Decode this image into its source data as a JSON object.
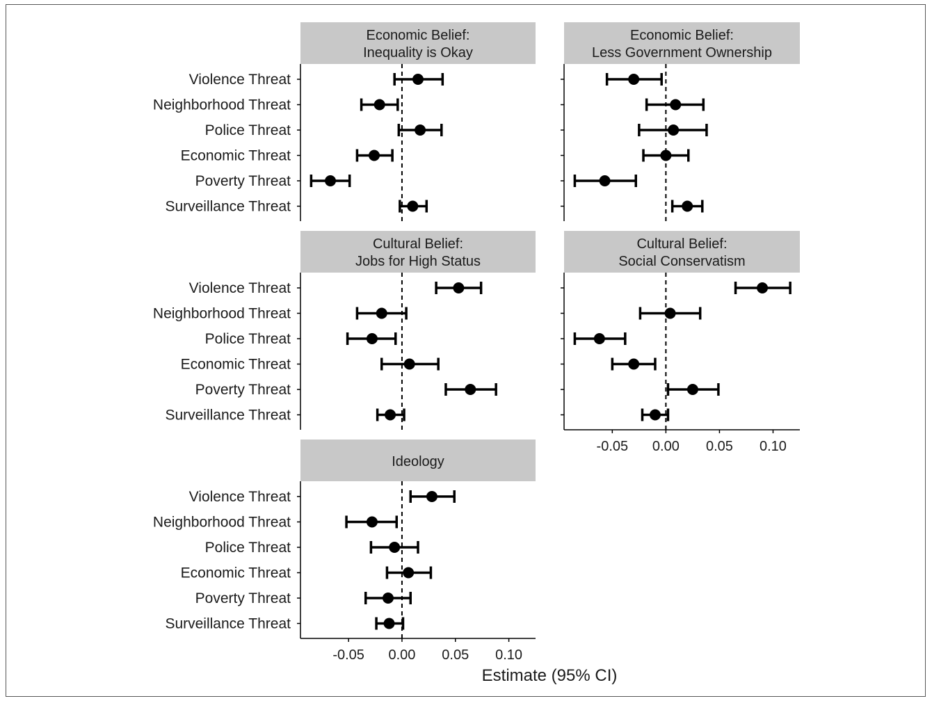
{
  "chart_data": {
    "type": "scatter",
    "subtype": "coefficient-plot-with-error-bars",
    "xlabel": "Estimate (95% CI)",
    "xlim": [
      -0.095,
      0.125
    ],
    "xticks": [
      -0.05,
      0.0,
      0.05,
      0.1
    ],
    "xtick_labels": [
      "-0.05",
      "0.00",
      "0.05",
      "0.10"
    ],
    "reference_line": 0,
    "categories": [
      "Violence Threat",
      "Neighborhood Threat",
      "Police Threat",
      "Economic Threat",
      "Poverty Threat",
      "Surveillance Threat"
    ],
    "colors": {
      "point": "#000000",
      "strip": "#c8c8c8",
      "axis": "#000000"
    },
    "panels": [
      {
        "title_lines": [
          "Economic Belief:",
          "Inequality is Okay"
        ],
        "estimates": [
          0.015,
          -0.021,
          0.017,
          -0.026,
          -0.067,
          0.01
        ],
        "ci_low": [
          -0.007,
          -0.038,
          -0.003,
          -0.042,
          -0.085,
          -0.002
        ],
        "ci_high": [
          0.038,
          -0.004,
          0.037,
          -0.009,
          -0.049,
          0.023
        ]
      },
      {
        "title_lines": [
          "Economic Belief:",
          "Less Government Ownership"
        ],
        "estimates": [
          -0.03,
          0.009,
          0.007,
          0.0,
          -0.057,
          0.02
        ],
        "ci_low": [
          -0.055,
          -0.018,
          -0.025,
          -0.021,
          -0.085,
          0.006
        ],
        "ci_high": [
          -0.004,
          0.035,
          0.038,
          0.021,
          -0.028,
          0.034
        ]
      },
      {
        "title_lines": [
          "Cultural Belief:",
          "Jobs for High Status"
        ],
        "estimates": [
          0.053,
          -0.019,
          -0.028,
          0.007,
          0.064,
          -0.011
        ],
        "ci_low": [
          0.032,
          -0.042,
          -0.051,
          -0.019,
          0.041,
          -0.023
        ],
        "ci_high": [
          0.074,
          0.004,
          -0.006,
          0.034,
          0.088,
          0.002
        ]
      },
      {
        "title_lines": [
          "Cultural Belief:",
          "Social Conservatism"
        ],
        "estimates": [
          0.09,
          0.004,
          -0.062,
          -0.03,
          0.025,
          -0.01
        ],
        "ci_low": [
          0.065,
          -0.024,
          -0.085,
          -0.05,
          0.002,
          -0.022
        ],
        "ci_high": [
          0.116,
          0.032,
          -0.038,
          -0.01,
          0.049,
          0.002
        ]
      },
      {
        "title_lines": [
          "Ideology"
        ],
        "estimates": [
          0.028,
          -0.028,
          -0.007,
          0.006,
          -0.013,
          -0.012
        ],
        "ci_low": [
          0.008,
          -0.052,
          -0.029,
          -0.014,
          -0.034,
          -0.024
        ],
        "ci_high": [
          0.049,
          -0.005,
          0.015,
          0.027,
          0.008,
          0.001
        ]
      }
    ]
  }
}
